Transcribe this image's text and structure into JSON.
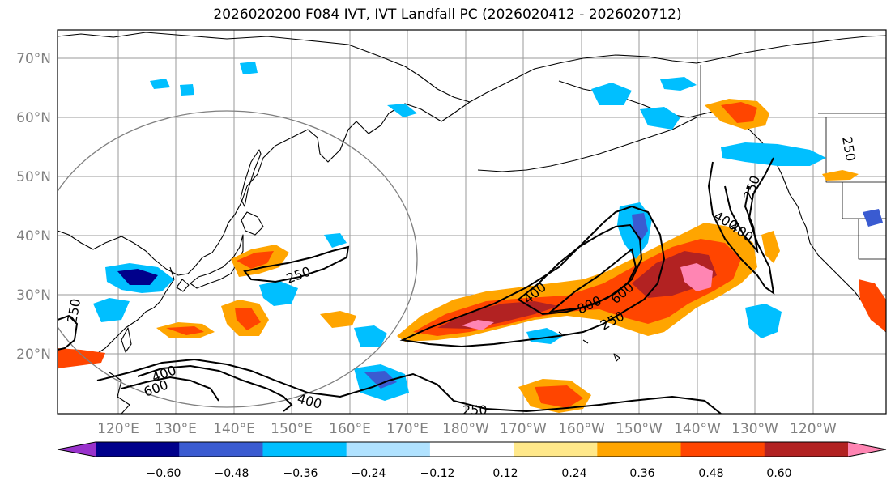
{
  "title": "2026020200 F084 IVT, IVT Landfall PC (2026020412 - 2026020712)",
  "axes": {
    "lat_labels": [
      "70°N",
      "60°N",
      "50°N",
      "40°N",
      "30°N",
      "20°N"
    ],
    "lon_labels": [
      "120°E",
      "130°E",
      "140°E",
      "150°E",
      "160°E",
      "170°E",
      "180°W",
      "170°W",
      "160°W",
      "150°W",
      "140°W",
      "130°W",
      "120°W"
    ]
  },
  "colorbar": {
    "colors": [
      "#9932cc",
      "#00008b",
      "#3a5bd1",
      "#00bfff",
      "#b0e2ff",
      "#ffffff",
      "#ffe88a",
      "#ffa500",
      "#ff4500",
      "#b22222",
      "#ff85b3"
    ],
    "tick_labels": [
      "−0.60",
      "−0.48",
      "−0.36",
      "−0.24",
      "−0.12",
      "0.12",
      "0.24",
      "0.36",
      "0.48",
      "0.60"
    ]
  },
  "contour_labels": [
    "250",
    "250",
    "250",
    "250",
    "250",
    "250",
    "400",
    "400",
    "400",
    "400",
    "400",
    "600",
    "600",
    "800"
  ]
}
